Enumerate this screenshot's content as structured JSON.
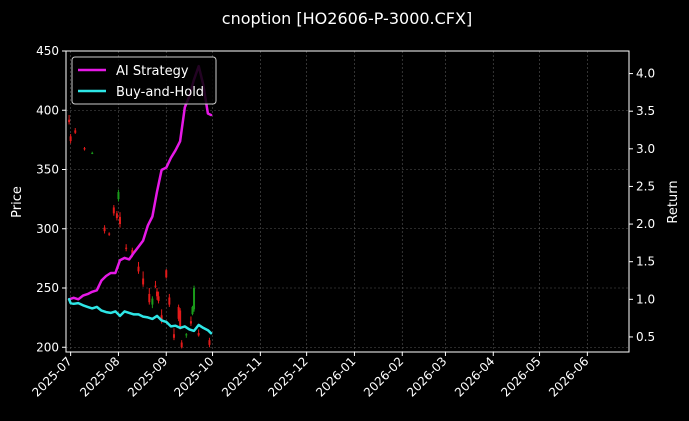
{
  "chart_data": {
    "type": "candlestick-line",
    "title": "cnoption [HO2606-P-3000.CFX]",
    "ylabel_left": "Price",
    "ylabel_right": "Return",
    "xlabel": "",
    "ylim_left": [
      196,
      450
    ],
    "ylim_right": [
      0.3,
      4.3
    ],
    "xlim": [
      "2025-06-28",
      "2026-06-28"
    ],
    "grid": true,
    "legend": "top-left",
    "colors": {
      "background": "#000000",
      "text": "#ffffff",
      "grid": "#555555",
      "up": "#1a9b1a",
      "down": "#e31a1a",
      "strategy": "#e619e6",
      "buy_and_hold": "#2ee6e6"
    },
    "y_left_ticks": [
      200,
      250,
      300,
      350,
      400,
      450
    ],
    "y_right_ticks": [
      0.5,
      1.0,
      1.5,
      2.0,
      2.5,
      3.0,
      3.5,
      4.0
    ],
    "x_ticks": [
      "2025-07",
      "2025-08",
      "2025-09",
      "2025-10",
      "2025-11",
      "2025-12",
      "2026-01",
      "2026-02",
      "2026-03",
      "2026-04",
      "2026-05",
      "2026-06"
    ],
    "series": [
      {
        "name": "AI Strategy",
        "x": [
          "2025-06-30",
          "2025-07-03",
          "2025-07-06",
          "2025-07-09",
          "2025-07-12",
          "2025-07-15",
          "2025-07-18",
          "2025-07-21",
          "2025-07-24",
          "2025-07-27",
          "2025-07-30",
          "2025-08-02",
          "2025-08-05",
          "2025-08-08",
          "2025-08-11",
          "2025-08-14",
          "2025-08-17",
          "2025-08-20",
          "2025-08-23",
          "2025-08-26",
          "2025-08-29",
          "2025-09-01",
          "2025-09-04",
          "2025-09-07",
          "2025-09-10",
          "2025-09-13",
          "2025-09-16",
          "2025-09-19",
          "2025-09-22",
          "2025-09-25",
          "2025-09-28",
          "2025-09-30"
        ],
        "values": [
          1.0,
          1.02,
          1.0,
          1.05,
          1.07,
          1.1,
          1.12,
          1.25,
          1.31,
          1.35,
          1.35,
          1.52,
          1.55,
          1.53,
          1.62,
          1.7,
          1.78,
          1.98,
          2.1,
          2.43,
          2.72,
          2.75,
          2.88,
          2.98,
          3.1,
          3.55,
          3.7,
          3.92,
          4.1,
          3.85,
          3.47,
          3.45
        ]
      },
      {
        "name": "Buy-and-Hold",
        "x": [
          "2025-06-30",
          "2025-07-01",
          "2025-07-03",
          "2025-07-06",
          "2025-07-09",
          "2025-07-12",
          "2025-07-15",
          "2025-07-18",
          "2025-07-21",
          "2025-07-24",
          "2025-07-27",
          "2025-07-30",
          "2025-08-02",
          "2025-08-05",
          "2025-08-08",
          "2025-08-11",
          "2025-08-14",
          "2025-08-17",
          "2025-08-20",
          "2025-08-23",
          "2025-08-26",
          "2025-08-29",
          "2025-09-01",
          "2025-09-04",
          "2025-09-07",
          "2025-09-10",
          "2025-09-13",
          "2025-09-16",
          "2025-09-19",
          "2025-09-22",
          "2025-09-25",
          "2025-09-28",
          "2025-09-30"
        ],
        "values": [
          1.0,
          0.95,
          0.94,
          0.95,
          0.92,
          0.9,
          0.88,
          0.9,
          0.85,
          0.83,
          0.82,
          0.84,
          0.78,
          0.84,
          0.82,
          0.8,
          0.8,
          0.77,
          0.76,
          0.74,
          0.78,
          0.72,
          0.7,
          0.64,
          0.65,
          0.62,
          0.64,
          0.6,
          0.58,
          0.66,
          0.62,
          0.59,
          0.55
        ]
      }
    ],
    "candles": [
      {
        "x": "2025-06-30",
        "open": 392,
        "high": 396,
        "low": 388,
        "close": 390
      },
      {
        "x": "2025-07-01",
        "open": 378,
        "high": 380,
        "low": 372,
        "close": 374
      },
      {
        "x": "2025-07-04",
        "open": 383,
        "high": 385,
        "low": 380,
        "close": 381
      },
      {
        "x": "2025-07-10",
        "open": 368,
        "high": 369,
        "low": 366,
        "close": 367
      },
      {
        "x": "2025-07-15",
        "open": 364,
        "high": 365,
        "low": 363,
        "close": 364
      },
      {
        "x": "2025-07-23",
        "open": 301,
        "high": 303,
        "low": 296,
        "close": 298
      },
      {
        "x": "2025-07-26",
        "open": 296,
        "high": 297,
        "low": 294,
        "close": 295
      },
      {
        "x": "2025-07-29",
        "open": 318,
        "high": 320,
        "low": 311,
        "close": 313
      },
      {
        "x": "2025-07-31",
        "open": 313,
        "high": 315,
        "low": 307,
        "close": 309
      },
      {
        "x": "2025-08-01",
        "open": 325,
        "high": 333,
        "low": 323,
        "close": 331
      },
      {
        "x": "2025-08-02",
        "open": 310,
        "high": 314,
        "low": 301,
        "close": 304
      },
      {
        "x": "2025-08-06",
        "open": 284,
        "high": 287,
        "low": 281,
        "close": 283
      },
      {
        "x": "2025-08-10",
        "open": 282,
        "high": 284,
        "low": 276,
        "close": 278
      },
      {
        "x": "2025-08-14",
        "open": 268,
        "high": 272,
        "low": 262,
        "close": 264
      },
      {
        "x": "2025-08-17",
        "open": 258,
        "high": 264,
        "low": 251,
        "close": 253
      },
      {
        "x": "2025-08-21",
        "open": 245,
        "high": 250,
        "low": 236,
        "close": 238
      },
      {
        "x": "2025-08-23",
        "open": 236,
        "high": 243,
        "low": 233,
        "close": 241
      },
      {
        "x": "2025-08-25",
        "open": 252,
        "high": 256,
        "low": 250,
        "close": 251
      },
      {
        "x": "2025-08-26",
        "open": 247,
        "high": 250,
        "low": 240,
        "close": 243
      },
      {
        "x": "2025-08-27",
        "open": 243,
        "high": 247,
        "low": 237,
        "close": 239
      },
      {
        "x": "2025-08-29",
        "open": 227,
        "high": 232,
        "low": 220,
        "close": 222
      },
      {
        "x": "2025-09-01",
        "open": 265,
        "high": 266,
        "low": 258,
        "close": 259
      },
      {
        "x": "2025-09-03",
        "open": 242,
        "high": 245,
        "low": 234,
        "close": 236
      },
      {
        "x": "2025-09-06",
        "open": 211,
        "high": 216,
        "low": 206,
        "close": 208
      },
      {
        "x": "2025-09-09",
        "open": 234,
        "high": 236,
        "low": 222,
        "close": 224
      },
      {
        "x": "2025-09-10",
        "open": 231,
        "high": 233,
        "low": 215,
        "close": 217
      },
      {
        "x": "2025-09-11",
        "open": 204,
        "high": 206,
        "low": 199,
        "close": 200
      },
      {
        "x": "2025-09-14",
        "open": 210,
        "high": 212,
        "low": 208,
        "close": 211
      },
      {
        "x": "2025-09-17",
        "open": 222,
        "high": 226,
        "low": 218,
        "close": 220
      },
      {
        "x": "2025-09-18",
        "open": 228,
        "high": 235,
        "low": 227,
        "close": 234
      },
      {
        "x": "2025-09-19",
        "open": 232,
        "high": 252,
        "low": 230,
        "close": 250
      },
      {
        "x": "2025-09-22",
        "open": 212,
        "high": 215,
        "low": 209,
        "close": 210
      },
      {
        "x": "2025-09-29",
        "open": 206,
        "high": 208,
        "low": 200,
        "close": 202
      }
    ]
  }
}
